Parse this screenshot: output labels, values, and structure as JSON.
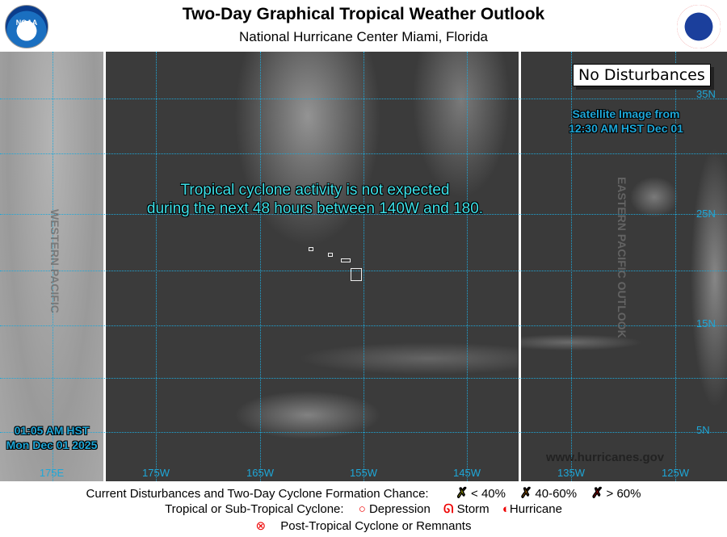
{
  "header": {
    "title": "Two-Day Graphical Tropical Weather Outlook",
    "subtitle": "National Hurricane Center  Miami, Florida",
    "left_logo": "NOAA",
    "right_logo": "NATIONAL WEATHER SERVICE"
  },
  "map": {
    "message_line1": "Tropical cyclone activity is not expected",
    "message_line2": "during the next 48 hours between 140W and 180.",
    "status_box": "No Disturbances",
    "satellite_line1": "Satellite Image from",
    "satellite_line2": "12:30 AM HST Dec 01",
    "issued_line1": "01:05 AM HST",
    "issued_line2": "Mon Dec 01 2025",
    "west_label": "WESTERN PACIFIC",
    "east_label": "EASTERN PACIFIC OUTLOOK",
    "website": "www.hurricanes.gov",
    "longitudes": [
      "175E",
      "175W",
      "165W",
      "155W",
      "145W",
      "135W",
      "125W"
    ],
    "latitudes": [
      "35N",
      "25N",
      "15N",
      "5N"
    ]
  },
  "legend": {
    "row1_label": "Current Disturbances and Two-Day Cyclone Formation Chance:",
    "low": "< 40%",
    "medium": "40-60%",
    "high": "> 60%",
    "row2_label": "Tropical or Sub-Tropical Cyclone:",
    "depression": "Depression",
    "storm": "Storm",
    "hurricane": "Hurricane",
    "post_tropical": "Post-Tropical Cyclone or Remnants",
    "colors": {
      "low": "#ffff00",
      "medium": "#ff9900",
      "high": "#ff0000",
      "cyclone": "#e00000",
      "grid": "#1ea7d8"
    }
  }
}
